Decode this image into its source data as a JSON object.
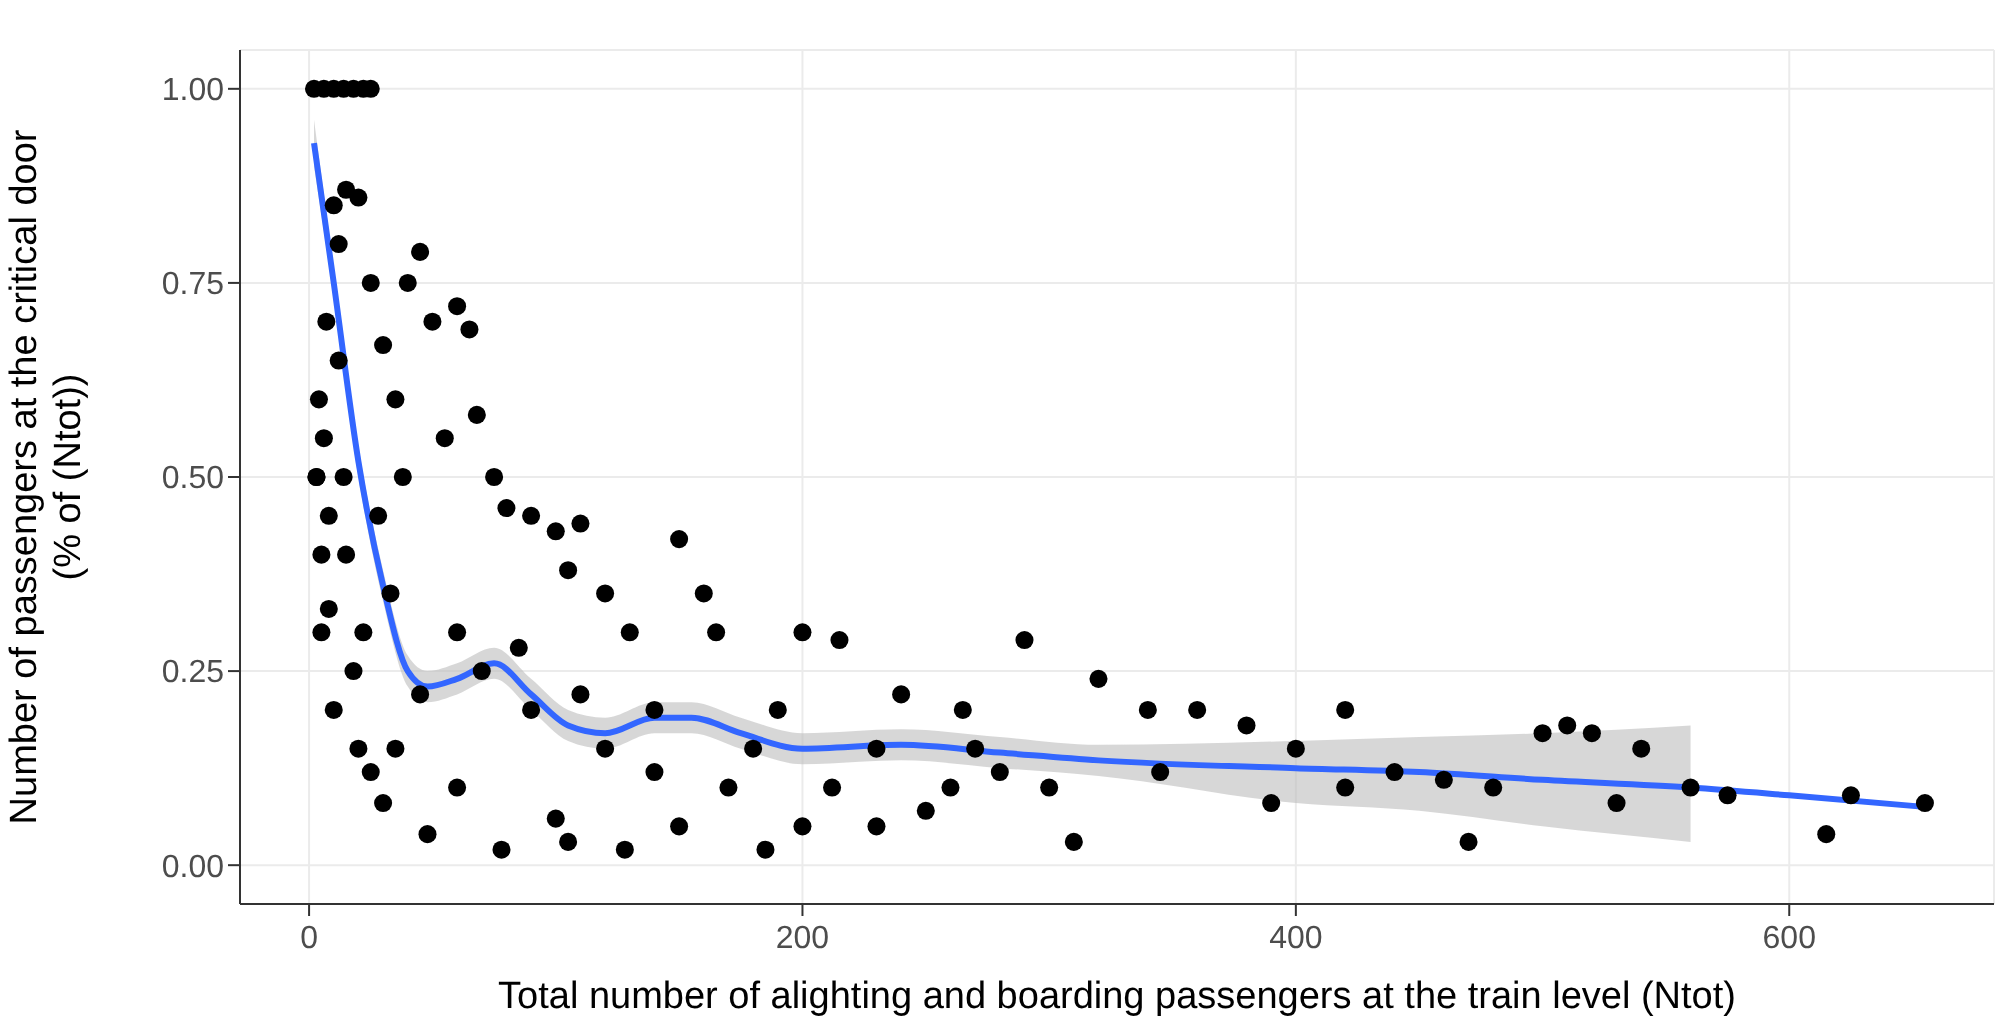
{
  "chart_data": {
    "type": "scatter",
    "xlabel": "Total number of alighting and boarding passengers at the train level (Ntot)",
    "ylabel": "Number of passengers at the critical door\n(% of (Ntot))",
    "xlim": [
      -28,
      683
    ],
    "ylim": [
      -0.05,
      1.05
    ],
    "xticks": [
      0,
      200,
      400,
      600
    ],
    "yticks": [
      {
        "value": 0,
        "label": "0.00"
      },
      {
        "value": 0.25,
        "label": "0.25"
      },
      {
        "value": 0.5,
        "label": "0.50"
      },
      {
        "value": 0.75,
        "label": "0.75"
      },
      {
        "value": 1,
        "label": "1.00"
      }
    ],
    "grid": true,
    "legend": false,
    "series": [
      {
        "type": "scatter",
        "marker": "circle",
        "color": "#000000",
        "x": [
          2,
          6,
          10,
          14,
          18,
          22,
          25,
          3,
          5,
          4,
          7,
          8,
          10,
          12,
          15,
          20,
          25,
          14,
          18,
          20,
          10,
          30,
          35,
          40,
          45,
          50,
          55,
          60,
          65,
          68,
          75,
          80,
          90,
          100,
          105,
          110,
          120,
          130,
          150,
          160,
          165,
          30,
          48,
          60,
          78,
          100,
          105,
          128,
          150,
          185,
          170,
          200,
          212,
          230,
          250,
          260,
          280,
          300,
          310,
          200,
          215,
          240,
          265,
          290,
          320,
          340,
          360,
          380,
          400,
          420,
          440,
          470,
          500,
          510,
          520,
          540,
          460,
          480,
          560,
          530,
          615,
          625,
          655,
          575,
          345,
          390,
          420,
          90,
          120,
          140,
          180,
          60,
          45,
          35,
          25,
          70,
          85,
          110,
          140,
          190,
          230,
          270,
          5,
          8,
          12,
          3,
          6,
          15,
          22,
          28,
          33,
          38
        ],
        "values": [
          1,
          1,
          1,
          1,
          1,
          1,
          1,
          0.5,
          0.4,
          0.6,
          0.7,
          0.33,
          0.85,
          0.8,
          0.87,
          0.86,
          0.75,
          0.5,
          0.25,
          0.15,
          0.2,
          0.67,
          0.6,
          0.75,
          0.79,
          0.7,
          0.55,
          0.72,
          0.69,
          0.58,
          0.5,
          0.46,
          0.45,
          0.43,
          0.38,
          0.44,
          0.35,
          0.3,
          0.42,
          0.35,
          0.3,
          0.08,
          0.04,
          0.1,
          0.02,
          0.06,
          0.03,
          0.02,
          0.05,
          0.02,
          0.1,
          0.05,
          0.1,
          0.05,
          0.07,
          0.1,
          0.12,
          0.1,
          0.03,
          0.3,
          0.29,
          0.22,
          0.2,
          0.29,
          0.24,
          0.2,
          0.2,
          0.18,
          0.15,
          0.2,
          0.12,
          0.03,
          0.17,
          0.18,
          0.17,
          0.15,
          0.11,
          0.1,
          0.1,
          0.08,
          0.04,
          0.09,
          0.08,
          0.09,
          0.12,
          0.08,
          0.1,
          0.2,
          0.15,
          0.12,
          0.15,
          0.3,
          0.22,
          0.15,
          0.12,
          0.25,
          0.28,
          0.22,
          0.2,
          0.2,
          0.15,
          0.15,
          0.3,
          0.45,
          0.65,
          0.5,
          0.55,
          0.4,
          0.3,
          0.45,
          0.35,
          0.5
        ]
      },
      {
        "type": "line",
        "marker": "none",
        "color": "#3366ff",
        "x": [
          2,
          10,
          20,
          30,
          40,
          48,
          60,
          75,
          90,
          105,
          120,
          140,
          155,
          175,
          200,
          240,
          280,
          320,
          400,
          450,
          500,
          560,
          600,
          655
        ],
        "values": [
          0.93,
          0.75,
          0.52,
          0.36,
          0.25,
          0.23,
          0.24,
          0.26,
          0.22,
          0.18,
          0.17,
          0.19,
          0.19,
          0.17,
          0.15,
          0.155,
          0.145,
          0.135,
          0.125,
          0.12,
          0.11,
          0.1,
          0.09,
          0.075
        ],
        "lower": [
          0.9,
          0.73,
          0.5,
          0.34,
          0.23,
          0.21,
          0.22,
          0.24,
          0.2,
          0.16,
          0.15,
          0.17,
          0.17,
          0.15,
          0.13,
          0.135,
          0.125,
          0.115,
          0.08,
          0.07,
          0.05,
          0.03,
          null,
          null
        ],
        "upper": [
          0.96,
          0.77,
          0.54,
          0.38,
          0.27,
          0.25,
          0.26,
          0.28,
          0.24,
          0.2,
          0.19,
          0.21,
          0.21,
          0.19,
          0.17,
          0.175,
          0.165,
          0.155,
          0.16,
          0.165,
          0.17,
          0.18,
          null,
          null
        ]
      }
    ]
  }
}
